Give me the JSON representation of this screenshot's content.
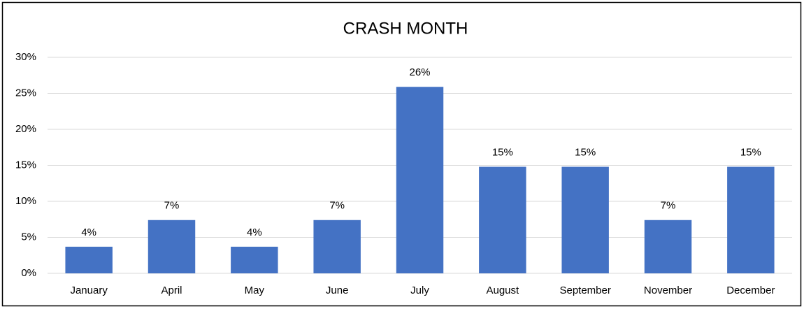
{
  "chart_data": {
    "type": "bar",
    "title": "CRASH MONTH",
    "categories": [
      "January",
      "April",
      "May",
      "June",
      "July",
      "August",
      "September",
      "November",
      "December"
    ],
    "values": [
      3.7,
      7.4,
      3.7,
      7.4,
      25.9,
      14.8,
      14.8,
      7.4,
      14.8
    ],
    "value_labels": [
      "4%",
      "7%",
      "4%",
      "7%",
      "26%",
      "15%",
      "15%",
      "7%",
      "15%"
    ],
    "color": "#4472c4",
    "ylim": [
      0,
      30
    ],
    "yticks": [
      {
        "value": 0,
        "label": "0%"
      },
      {
        "value": 5,
        "label": "5%"
      },
      {
        "value": 10,
        "label": "10%"
      },
      {
        "value": 15,
        "label": "15%"
      },
      {
        "value": 20,
        "label": "20%"
      },
      {
        "value": 25,
        "label": "25%"
      },
      {
        "value": 30,
        "label": "30%"
      }
    ],
    "grid": true
  }
}
